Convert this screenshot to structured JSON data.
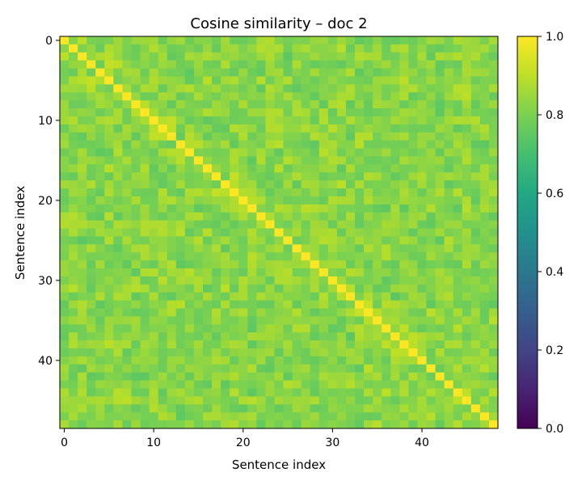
{
  "chart_data": {
    "type": "heatmap",
    "title": "Cosine similarity – doc 2",
    "xlabel": "Sentence index",
    "ylabel": "Sentence index",
    "n": 49,
    "x_ticks": [
      0,
      10,
      20,
      30,
      40
    ],
    "y_ticks": [
      0,
      10,
      20,
      30,
      40
    ],
    "colorbar": {
      "range": [
        0.0,
        1.0
      ],
      "ticks": [
        "0.0",
        "0.2",
        "0.4",
        "0.6",
        "0.8",
        "1.0"
      ],
      "colormap": "viridis"
    },
    "diagonal_value": 1.0,
    "off_diagonal_range": [
      0.72,
      0.92
    ],
    "off_diagonal_typical": 0.82,
    "matrix_note": "49×49 symmetric matrix"
  }
}
